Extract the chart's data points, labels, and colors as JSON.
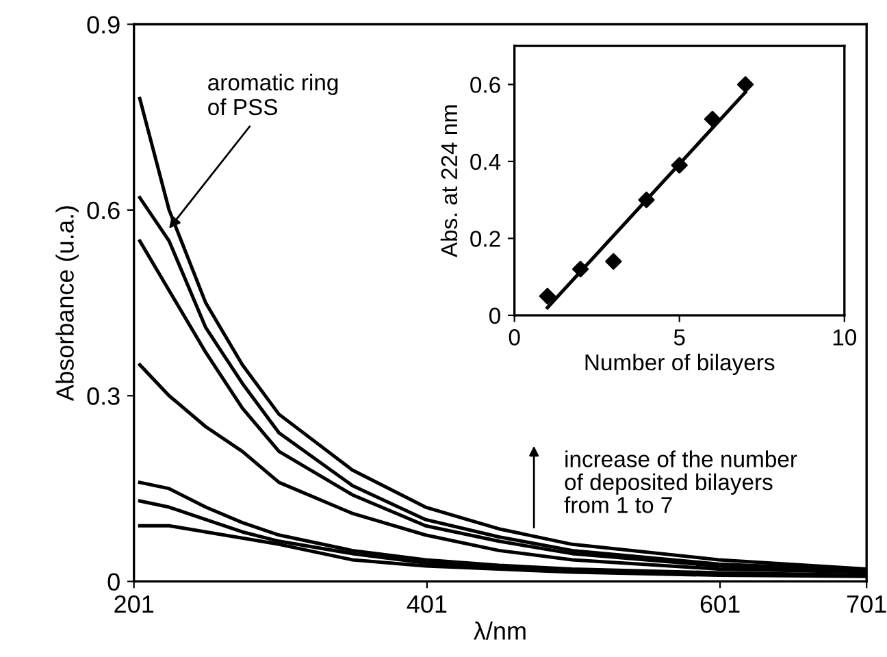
{
  "chart_data": [
    {
      "type": "line",
      "xlabel": "λ/nm",
      "ylabel": "Absorbance (u.a.)",
      "xlim": [
        201,
        701
      ],
      "ylim": [
        0,
        0.9
      ],
      "xticks": [
        201,
        401,
        601,
        701
      ],
      "yticks": [
        0,
        0.3,
        0.6,
        0.9
      ],
      "grid": false,
      "marker": "none",
      "line_style": "solid",
      "x": [
        205,
        225,
        250,
        275,
        300,
        350,
        400,
        450,
        500,
        600,
        701
      ],
      "series": [
        {
          "color": "#000000",
          "values": [
            0.09,
            0.09,
            0.08,
            0.07,
            0.06,
            0.035,
            0.025,
            0.02,
            0.015,
            0.01,
            0.008
          ]
        },
        {
          "color": "#000000",
          "values": [
            0.13,
            0.12,
            0.1,
            0.08,
            0.065,
            0.045,
            0.03,
            0.022,
            0.017,
            0.012,
            0.01
          ]
        },
        {
          "color": "#000000",
          "values": [
            0.16,
            0.15,
            0.12,
            0.095,
            0.075,
            0.05,
            0.035,
            0.026,
            0.02,
            0.014,
            0.01
          ]
        },
        {
          "color": "#000000",
          "values": [
            0.35,
            0.3,
            0.25,
            0.21,
            0.16,
            0.11,
            0.075,
            0.05,
            0.035,
            0.02,
            0.015
          ]
        },
        {
          "color": "#000000",
          "values": [
            0.55,
            0.47,
            0.37,
            0.28,
            0.21,
            0.14,
            0.09,
            0.065,
            0.045,
            0.025,
            0.016
          ]
        },
        {
          "color": "#000000",
          "values": [
            0.62,
            0.55,
            0.41,
            0.32,
            0.24,
            0.155,
            0.1,
            0.072,
            0.05,
            0.028,
            0.018
          ]
        },
        {
          "color": "#000000",
          "values": [
            0.78,
            0.6,
            0.45,
            0.35,
            0.27,
            0.18,
            0.12,
            0.085,
            0.06,
            0.035,
            0.02
          ]
        }
      ],
      "annotations": [
        {
          "text": "aromatic ring\nof PSS",
          "x": 225,
          "y": 0.57
        },
        "increase of the number\nof deposited bilayers\nfrom 1 to 7"
      ]
    },
    {
      "type": "scatter",
      "xlabel": "Number of bilayers",
      "ylabel": "Abs. at 224 nm",
      "xlim": [
        0,
        10
      ],
      "ylim": [
        0,
        0.7
      ],
      "xticks": [
        0,
        5,
        10
      ],
      "yticks": [
        0,
        0.2,
        0.4,
        0.6
      ],
      "grid": false,
      "series": [
        {
          "type": "scatter",
          "marker": "diamond",
          "color": "#000000",
          "x": [
            1,
            2,
            3,
            4,
            5,
            6,
            7
          ],
          "values": [
            0.05,
            0.12,
            0.14,
            0.3,
            0.39,
            0.51,
            0.6
          ]
        },
        {
          "type": "line",
          "marker": "none",
          "color": "#000000",
          "x": [
            1,
            7
          ],
          "values": [
            0.02,
            0.58
          ]
        }
      ]
    }
  ]
}
